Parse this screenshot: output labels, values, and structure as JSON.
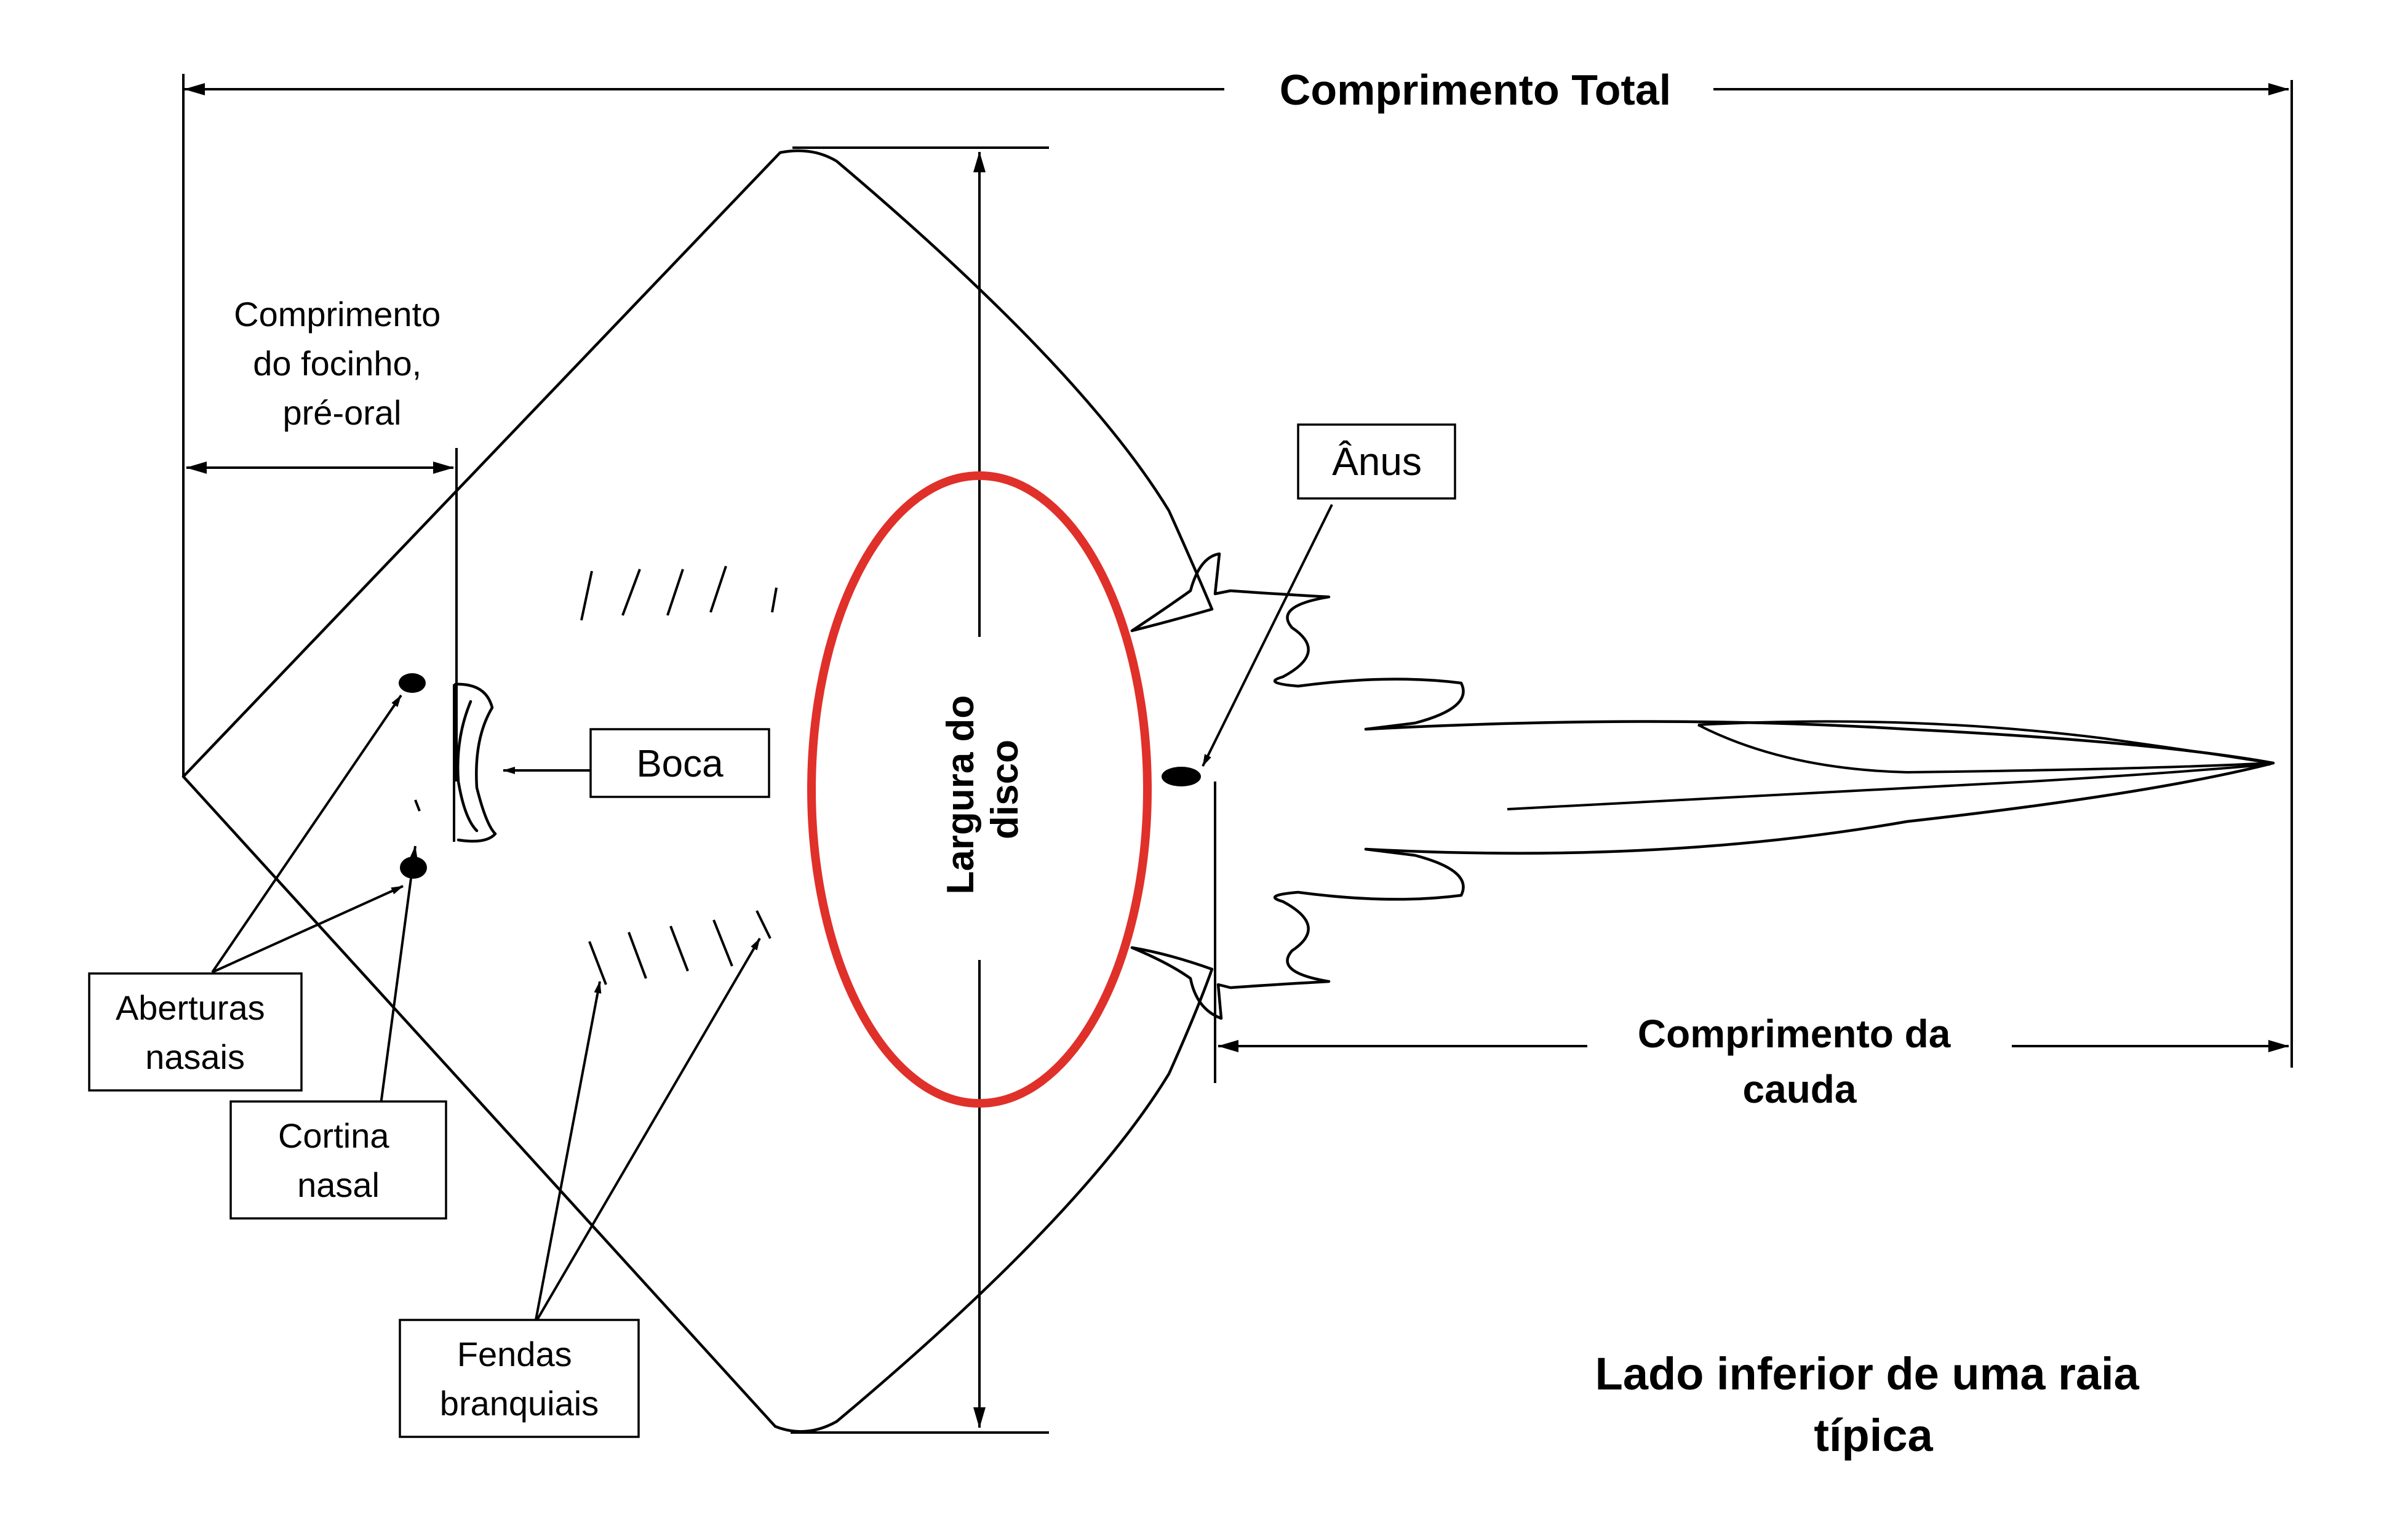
{
  "title": "Lado inferior de uma raia típica",
  "labels": {
    "comprimento_total": "Comprimento Total",
    "comprimento_focinho": [
      "Comprimento",
      "do focinho,",
      "pré-oral"
    ],
    "largura_disco": [
      "Largura do",
      "disco"
    ],
    "anus": "Ânus",
    "boca": "Boca",
    "aberturas_nasais": [
      "Aberturas",
      "nasais"
    ],
    "cortina_nasal": [
      "Cortina",
      "nasal"
    ],
    "fendas_branquiais": [
      "Fendas",
      "branquiais"
    ],
    "comprimento_cauda": [
      "Comprimento da",
      "cauda"
    ]
  },
  "title_lines": [
    "Lado inferior de uma raia",
    "típica"
  ],
  "colors": {
    "highlight": "#e0302a",
    "ink": "#000000"
  }
}
